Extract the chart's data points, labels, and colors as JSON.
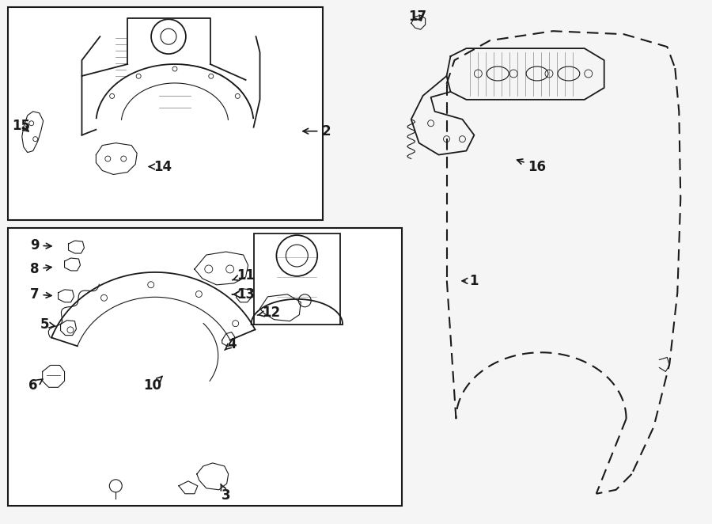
{
  "bg_color": "#f5f5f5",
  "line_color": "#1a1a1a",
  "fig_w": 9.0,
  "fig_h": 6.62,
  "dpi": 100
}
